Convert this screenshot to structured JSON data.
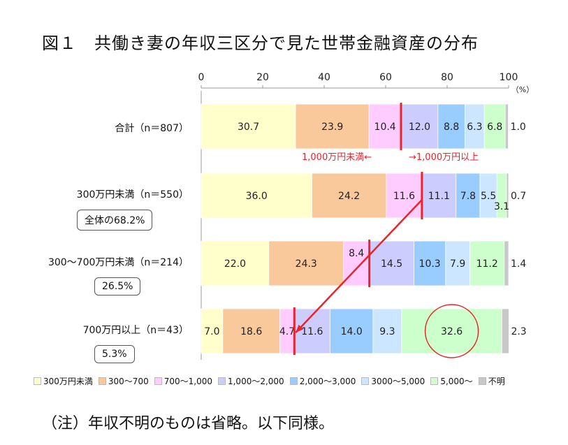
{
  "title": "図１　共働き妻の年収三区分で見た世帯金融資産の分布",
  "note": "（注）年収不明のものは省略。以下同様。",
  "threshold_left": "1,000万円未満←",
  "threshold_right": "→1,000万円以上",
  "chart_data": {
    "type": "bar",
    "orientation": "horizontal",
    "stacked": true,
    "xlim": [
      0,
      100
    ],
    "x_ticks": [
      "0",
      "20",
      "40",
      "60",
      "80",
      "100"
    ],
    "x_unit": "（%）",
    "categories": [
      "合計（n＝807）",
      "300万円未満（n＝550）",
      "300～700万円未満（n＝214）",
      "700万円以上（n＝43）"
    ],
    "callouts": [
      "",
      "全体の68.2%",
      "26.5%",
      "5.3%"
    ],
    "series": [
      {
        "name": "300万円未満",
        "color": "#ffffcc",
        "values": [
          30.7,
          36.0,
          22.0,
          7.0
        ]
      },
      {
        "name": "300～700",
        "color": "#f9c89b",
        "values": [
          23.9,
          24.2,
          24.3,
          18.6
        ]
      },
      {
        "name": "700～1,000",
        "color": "#ffccff",
        "values": [
          10.4,
          11.6,
          8.4,
          4.7
        ]
      },
      {
        "name": "1,000～2,000",
        "color": "#ccccff",
        "values": [
          12.0,
          11.1,
          14.5,
          11.6
        ]
      },
      {
        "name": "2,000～3,000",
        "color": "#99ccff",
        "values": [
          8.8,
          7.8,
          10.3,
          14.0
        ]
      },
      {
        "name": "3000～5,000",
        "color": "#cce6ff",
        "values": [
          6.3,
          5.5,
          7.9,
          9.3
        ]
      },
      {
        "name": "5,000～",
        "color": "#ccffcc",
        "values": [
          6.8,
          3.1,
          11.2,
          32.6
        ]
      },
      {
        "name": "不明",
        "color": "#c8c8c8",
        "values": [
          1.0,
          0.7,
          1.4,
          2.3
        ]
      }
    ],
    "value_labels": [
      [
        "30.7",
        "23.9",
        "10.4",
        "12.0",
        "8.8",
        "6.3",
        "6.8",
        "1.0"
      ],
      [
        "36.0",
        "24.2",
        "11.6",
        "11.1",
        "7.8",
        "5.5",
        "3.1",
        "0.7"
      ],
      [
        "22.0",
        "24.3",
        "8.4",
        "14.5",
        "10.3",
        "7.9",
        "11.2",
        "1.4"
      ],
      [
        "7.0",
        "18.6",
        "4.7",
        "11.6",
        "14.0",
        "9.3",
        "32.6",
        "2.3"
      ]
    ],
    "legend_position": "bottom",
    "highlight_circle": {
      "category_index": 3,
      "series_index": 6
    },
    "divider_color": "#e8242c"
  }
}
